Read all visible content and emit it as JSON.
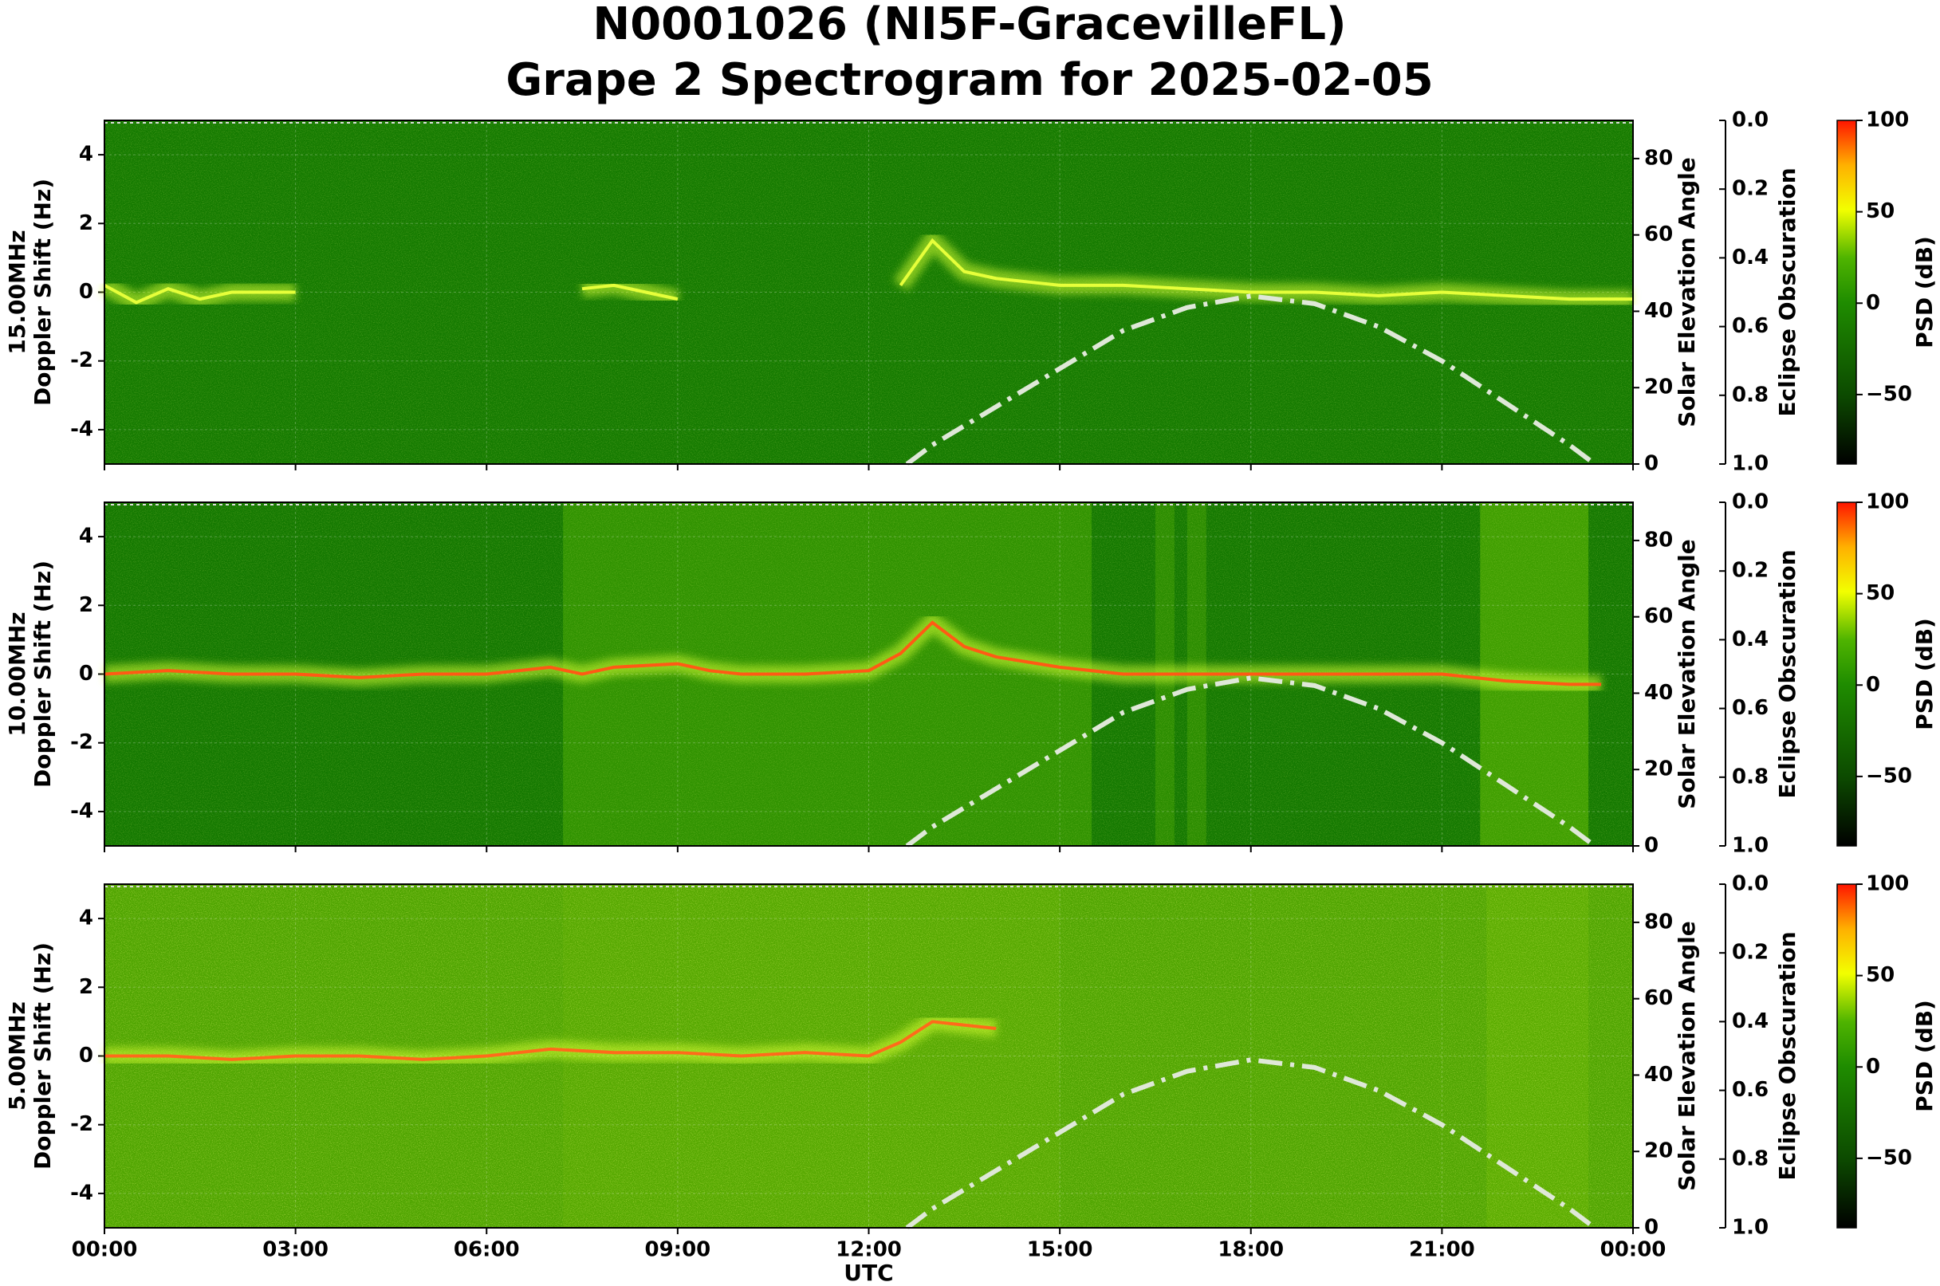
{
  "title": "N0001026 (NI5F-GracevilleFL)",
  "subtitle": "Grape 2 Spectrogram for 2025-02-05",
  "chart_data": [
    {
      "type": "spectrogram",
      "ylabel": [
        "15.00MHz",
        "Doppler Shift (Hz)"
      ],
      "y2label": "Solar Elevation Angle",
      "y3label": "Eclipse Obscuration",
      "clabel": "PSD (dB)",
      "ylim": [
        -5,
        5
      ],
      "yticks": [
        -4,
        -2,
        0,
        2,
        4
      ],
      "y2lim": [
        0,
        90
      ],
      "y2ticks": [
        0,
        20,
        40,
        60,
        80
      ],
      "y3lim": [
        0,
        1
      ],
      "y3_inverted": true,
      "y3ticks": [
        {
          "value": 0,
          "label": "0.0"
        },
        0.2,
        0.4,
        0.6,
        0.8,
        {
          "value": 1,
          "label": "1.0"
        }
      ],
      "clim": [
        -88,
        100
      ],
      "cticks": [
        {
          "value": -50,
          "label": "−50"
        },
        0,
        50,
        100
      ],
      "series": [
        {
          "color": "#e6ff3a",
          "x": [
            0,
            0.5,
            1,
            1.5,
            2,
            2.5,
            3,
            3.5,
            7.5,
            8,
            8.5,
            9,
            9.5,
            12.5,
            13,
            13.5,
            14,
            14.5,
            15,
            16,
            17,
            18,
            19,
            20,
            21,
            22,
            23,
            24
          ],
          "values": [
            0.2,
            -0.3,
            0.1,
            -0.2,
            0,
            0,
            0,
            null,
            0.1,
            0.2,
            0,
            -0.2,
            null,
            0.2,
            1.5,
            0.6,
            0.4,
            0.3,
            0.2,
            0.2,
            0.1,
            0,
            0,
            -0.1,
            0,
            -0.1,
            -0.2,
            -0.2
          ]
        },
        {
          "color": "#dfe8d8",
          "axis": "y2",
          "x": [
            12.6,
            13,
            14,
            15,
            16,
            17,
            18,
            19,
            20,
            21,
            22,
            23,
            23.4
          ],
          "values": [
            0,
            5,
            15,
            25,
            35,
            41,
            44,
            42,
            36,
            27,
            16,
            5,
            0
          ]
        }
      ]
    },
    {
      "type": "spectrogram",
      "ylabel": [
        "10.00MHz",
        "Doppler Shift (Hz)"
      ],
      "y2label": "Solar Elevation Angle",
      "y3label": "Eclipse Obscuration",
      "clabel": "PSD (dB)",
      "ylim": [
        -5,
        5
      ],
      "yticks": [
        -4,
        -2,
        0,
        2,
        4
      ],
      "y2lim": [
        0,
        90
      ],
      "y2ticks": [
        0,
        20,
        40,
        60,
        80
      ],
      "y3lim": [
        0,
        1
      ],
      "y3_inverted": true,
      "y3ticks": [
        {
          "value": 0,
          "label": "0.0"
        },
        0.2,
        0.4,
        0.6,
        0.8,
        {
          "value": 1,
          "label": "1.0"
        }
      ],
      "clim": [
        -88,
        100
      ],
      "cticks": [
        {
          "value": -50,
          "label": "−50"
        },
        0,
        50,
        100
      ],
      "series": [
        {
          "color": "#ff5a14",
          "x": [
            0,
            1,
            2,
            3,
            4,
            5,
            6,
            7,
            7.5,
            8,
            9,
            9.5,
            10,
            11,
            12,
            12.5,
            13,
            13.5,
            14,
            15,
            16,
            18,
            20,
            21,
            22,
            23,
            23.5
          ],
          "values": [
            0,
            0.1,
            0,
            0,
            -0.1,
            0,
            0,
            0.2,
            0,
            0.2,
            0.3,
            0.1,
            0,
            0,
            0.1,
            0.6,
            1.5,
            0.8,
            0.5,
            0.2,
            0,
            0,
            0,
            0,
            -0.2,
            -0.3,
            -0.3
          ]
        },
        {
          "color": "#dfe8d8",
          "axis": "y2",
          "x": [
            12.6,
            13,
            14,
            15,
            16,
            17,
            18,
            19,
            20,
            21,
            22,
            23,
            23.4
          ],
          "values": [
            0,
            5,
            15,
            25,
            35,
            41,
            44,
            42,
            36,
            27,
            16,
            5,
            0
          ]
        }
      ]
    },
    {
      "type": "spectrogram",
      "ylabel": [
        "5.00MHz",
        "Doppler Shift (Hz)"
      ],
      "y2label": "Solar Elevation Angle",
      "y3label": "Eclipse Obscuration",
      "clabel": "PSD (dB)",
      "xlabel": "UTC",
      "xlim": [
        0,
        24
      ],
      "xticks": [
        {
          "value": 0,
          "label": "00:00"
        },
        {
          "value": 3,
          "label": "03:00"
        },
        {
          "value": 6,
          "label": "06:00"
        },
        {
          "value": 9,
          "label": "09:00"
        },
        {
          "value": 12,
          "label": "12:00"
        },
        {
          "value": 15,
          "label": "15:00"
        },
        {
          "value": 18,
          "label": "18:00"
        },
        {
          "value": 21,
          "label": "21:00"
        },
        {
          "value": 24,
          "label": "00:00"
        }
      ],
      "ylim": [
        -5,
        5
      ],
      "yticks": [
        -4,
        -2,
        0,
        2,
        4
      ],
      "y2lim": [
        0,
        90
      ],
      "y2ticks": [
        0,
        20,
        40,
        60,
        80
      ],
      "y3lim": [
        0,
        1
      ],
      "y3_inverted": true,
      "y3ticks": [
        {
          "value": 0,
          "label": "0.0"
        },
        0.2,
        0.4,
        0.6,
        0.8,
        {
          "value": 1,
          "label": "1.0"
        }
      ],
      "clim": [
        -88,
        100
      ],
      "cticks": [
        {
          "value": -50,
          "label": "−50"
        },
        0,
        50,
        100
      ],
      "series": [
        {
          "color": "#ff6a1a",
          "x": [
            0,
            1,
            2,
            3,
            4,
            5,
            6,
            7,
            8,
            9,
            10,
            11,
            12,
            12.5,
            13,
            13.5,
            14
          ],
          "values": [
            0,
            0,
            -0.1,
            0,
            0,
            -0.1,
            0,
            0.2,
            0.1,
            0.1,
            0,
            0.1,
            0,
            0.4,
            1,
            0.9,
            0.8
          ]
        },
        {
          "color": "#dfe8d8",
          "axis": "y2",
          "x": [
            12.6,
            13,
            14,
            15,
            16,
            17,
            18,
            19,
            20,
            21,
            22,
            23,
            23.4
          ],
          "values": [
            0,
            5,
            15,
            25,
            35,
            41,
            44,
            42,
            36,
            27,
            16,
            5,
            0
          ]
        }
      ]
    }
  ]
}
